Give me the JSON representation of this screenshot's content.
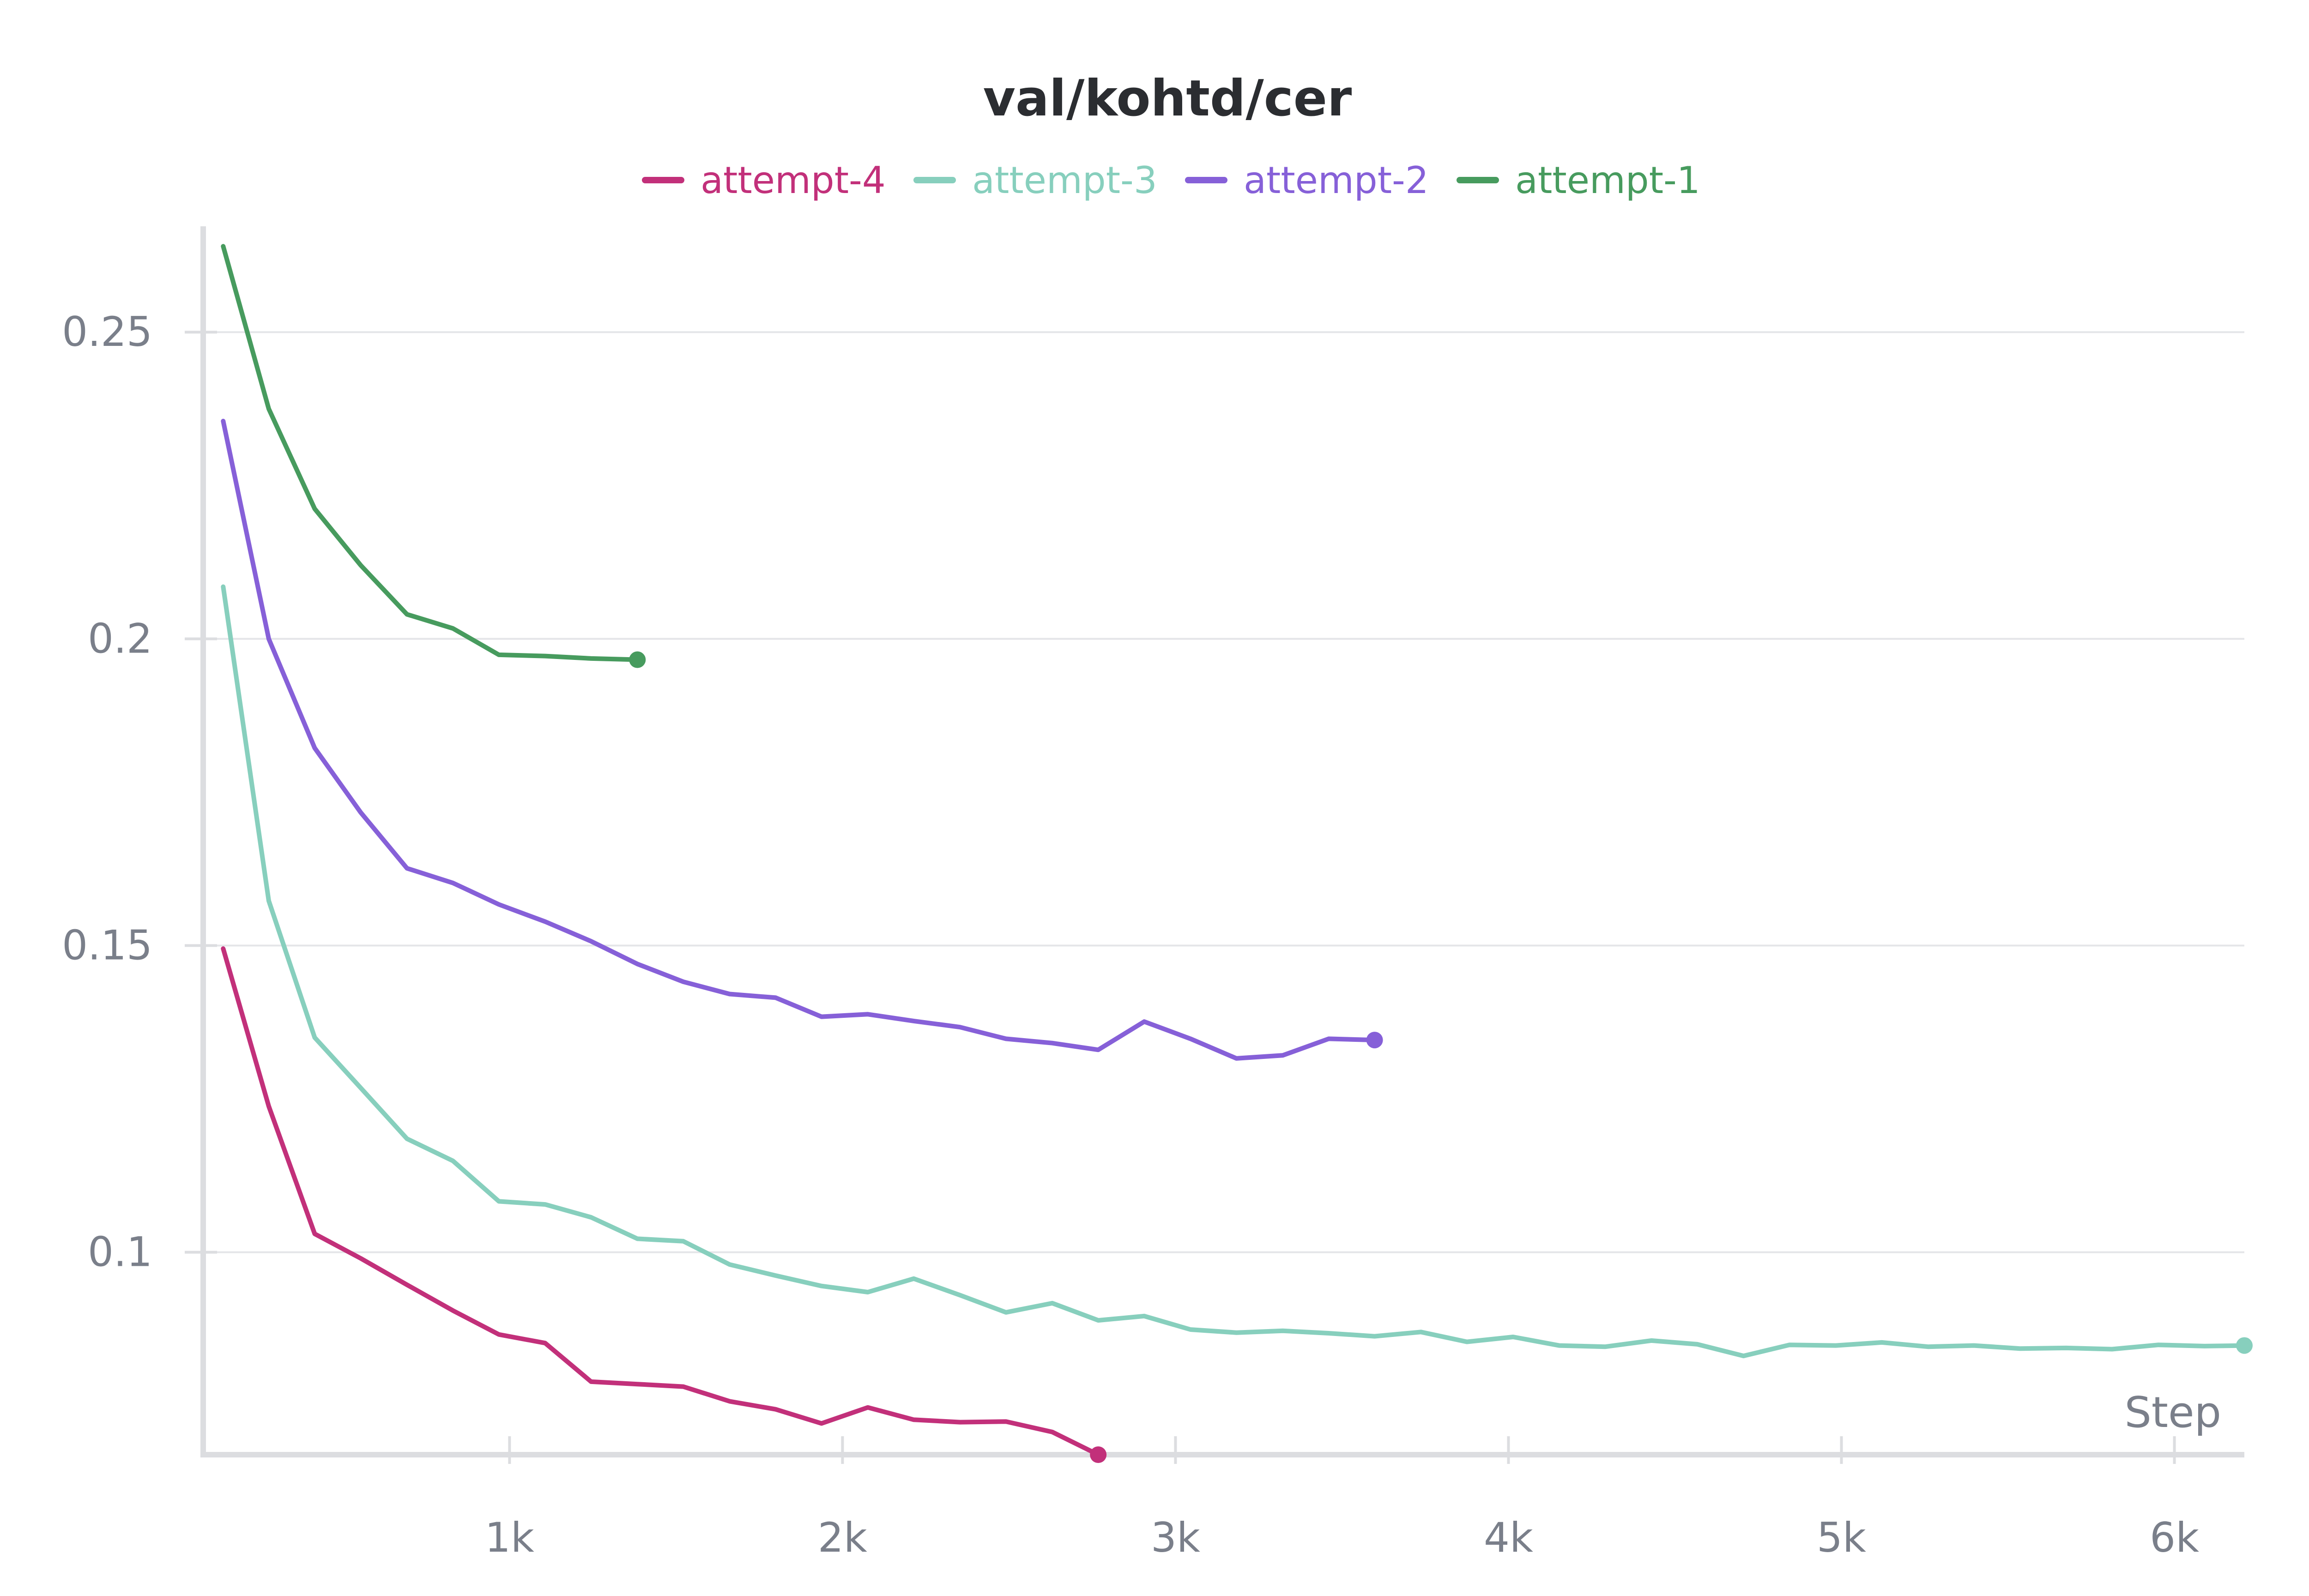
{
  "chart_data": {
    "type": "line",
    "title": "val/kohtd/cer",
    "xlabel": "Step",
    "ylabel": "",
    "xlim": [
      80,
      6210
    ],
    "ylim": [
      0.067,
      0.265
    ],
    "x_ticks": [
      1000,
      2000,
      3000,
      4000,
      5000,
      6000
    ],
    "x_tick_labels": [
      "1k",
      "2k",
      "3k",
      "4k",
      "5k",
      "6k"
    ],
    "y_ticks": [
      0.1,
      0.15,
      0.2,
      0.25
    ],
    "y_tick_labels": [
      "0.1",
      "0.15",
      "0.2",
      "0.25"
    ],
    "grid": true,
    "legend_position": "top",
    "series": [
      {
        "name": "attempt-4",
        "color": "#c2307a",
        "x": [
          140,
          277,
          415,
          553,
          692,
          830,
          968,
          1107,
          1245,
          1384,
          1522,
          1661,
          1799,
          1937,
          2076,
          2214,
          2353,
          2491,
          2630,
          2768
        ],
        "y": [
          0.1495,
          0.1238,
          0.103,
          0.099,
          0.0947,
          0.0905,
          0.0866,
          0.0852,
          0.0789,
          0.0785,
          0.0781,
          0.0757,
          0.0744,
          0.0721,
          0.0747,
          0.0727,
          0.0723,
          0.0724,
          0.0707,
          0.067
        ]
      },
      {
        "name": "attempt-3",
        "color": "#87cfbd",
        "x": [
          140,
          277,
          415,
          553,
          692,
          830,
          968,
          1107,
          1245,
          1384,
          1522,
          1661,
          1799,
          1937,
          2076,
          2214,
          2353,
          2491,
          2630,
          2768,
          2906,
          3045,
          3183,
          3322,
          3460,
          3598,
          3737,
          3875,
          4014,
          4152,
          4291,
          4429,
          4567,
          4706,
          4844,
          4983,
          5121,
          5260,
          5398,
          5536,
          5675,
          5813,
          5952,
          6090,
          6210
        ],
        "y": [
          0.2085,
          0.1573,
          0.135,
          0.1268,
          0.1185,
          0.1149,
          0.1083,
          0.1078,
          0.1057,
          0.1022,
          0.1018,
          0.098,
          0.0962,
          0.0945,
          0.0935,
          0.0957,
          0.093,
          0.0902,
          0.0917,
          0.0889,
          0.0896,
          0.0874,
          0.0869,
          0.0872,
          0.0868,
          0.0863,
          0.087,
          0.0854,
          0.0862,
          0.0848,
          0.0846,
          0.0856,
          0.085,
          0.0831,
          0.0849,
          0.0848,
          0.0853,
          0.0846,
          0.0848,
          0.0843,
          0.0844,
          0.0842,
          0.0849,
          0.0847,
          0.0848
        ]
      },
      {
        "name": "attempt-2",
        "color": "#8660d8",
        "x": [
          140,
          277,
          415,
          553,
          692,
          830,
          968,
          1107,
          1245,
          1384,
          1522,
          1661,
          1799,
          1937,
          2076,
          2214,
          2353,
          2491,
          2630,
          2768,
          2906,
          3045,
          3183,
          3322,
          3460,
          3598
        ],
        "y": [
          0.2355,
          0.2,
          0.1822,
          0.1717,
          0.1626,
          0.1602,
          0.1567,
          0.1539,
          0.1507,
          0.147,
          0.1441,
          0.1421,
          0.1415,
          0.1384,
          0.1388,
          0.1377,
          0.1367,
          0.1348,
          0.1341,
          0.133,
          0.1376,
          0.1348,
          0.1316,
          0.1321,
          0.1348,
          0.1346
        ]
      },
      {
        "name": "attempt-1",
        "color": "#479b5e",
        "x": [
          140,
          277,
          415,
          553,
          692,
          830,
          968,
          1107,
          1245,
          1384
        ],
        "y": [
          0.264,
          0.2375,
          0.2212,
          0.212,
          0.204,
          0.2017,
          0.1974,
          0.1972,
          0.1968,
          0.1966
        ]
      }
    ]
  }
}
